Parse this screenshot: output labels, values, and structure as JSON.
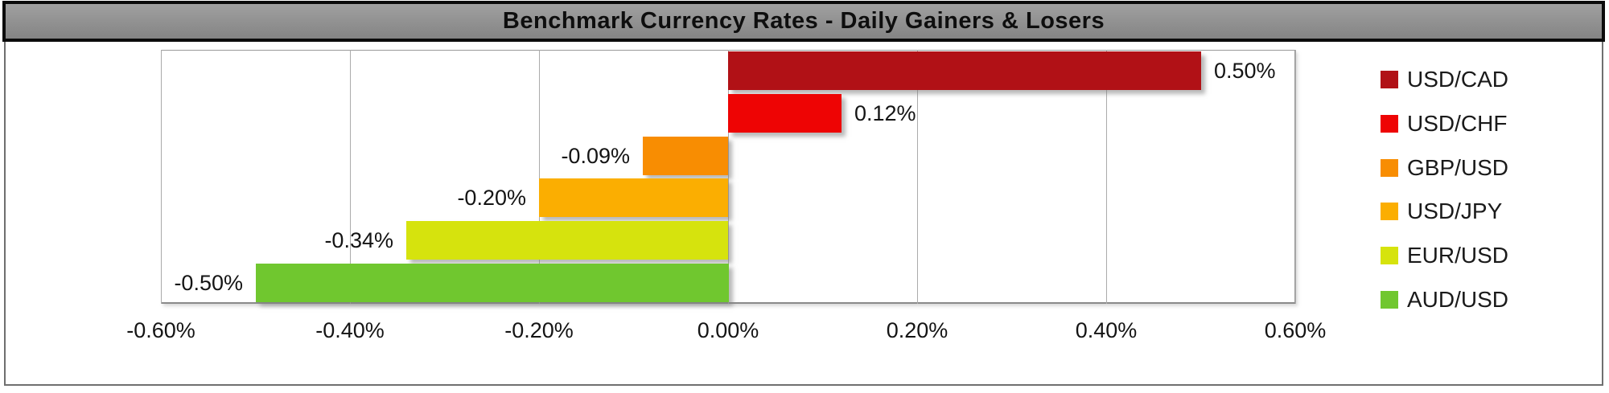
{
  "title": "Benchmark Currency Rates - Daily Gainers & Losers",
  "chart_data": {
    "type": "bar",
    "orientation": "horizontal",
    "title": "Benchmark Currency Rates - Daily Gainers & Losers",
    "xlabel": "",
    "ylabel": "",
    "grid": true,
    "legend_position": "right",
    "x_axis": {
      "min": -0.6,
      "max": 0.6,
      "tick_step": 0.2,
      "ticks": [
        -0.6,
        -0.4,
        -0.2,
        0.0,
        0.2,
        0.4,
        0.6
      ],
      "tick_labels": [
        "-0.60%",
        "-0.40%",
        "-0.20%",
        "0.00%",
        "0.20%",
        "0.40%",
        "0.60%"
      ]
    },
    "series": [
      {
        "name": "USD/CAD",
        "value": 0.5,
        "data_label": "0.50%",
        "color": "#B11116"
      },
      {
        "name": "USD/CHF",
        "value": 0.12,
        "data_label": "0.12%",
        "color": "#EE0404"
      },
      {
        "name": "GBP/USD",
        "value": -0.09,
        "data_label": "-0.09%",
        "color": "#F88D02"
      },
      {
        "name": "USD/JPY",
        "value": -0.2,
        "data_label": "-0.20%",
        "color": "#FBAE01"
      },
      {
        "name": "EUR/USD",
        "value": -0.34,
        "data_label": "-0.34%",
        "color": "#D6E30D"
      },
      {
        "name": "AUD/USD",
        "value": -0.5,
        "data_label": "-0.50%",
        "color": "#70C72F"
      }
    ]
  },
  "colors": {
    "title_bar_background": "#8F8F8F",
    "title_bar_border": "#0B0B0B",
    "frame_border": "#6F6F6F",
    "gridline": "#ABABAB",
    "plot_border": "#9A9A9A",
    "text": "#141414"
  }
}
